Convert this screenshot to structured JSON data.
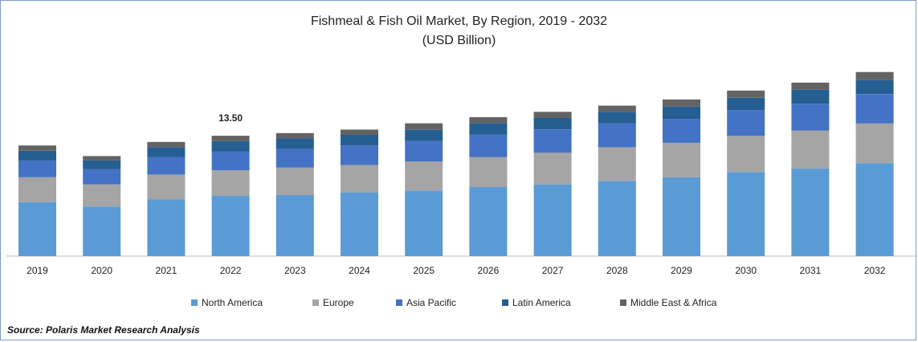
{
  "chart_data": {
    "type": "bar",
    "stacked": true,
    "title": "Fishmeal & Fish Oil Market, By Region, 2019 - 2032",
    "subtitle": "(USD Billion)",
    "categories": [
      "2019",
      "2020",
      "2021",
      "2022",
      "2023",
      "2024",
      "2025",
      "2026",
      "2027",
      "2028",
      "2029",
      "2030",
      "2031",
      "2032"
    ],
    "series": [
      {
        "name": "North America",
        "color": "#5b9bd5",
        "values": [
          6.1,
          5.6,
          6.4,
          6.8,
          6.9,
          7.2,
          7.4,
          7.8,
          8.1,
          8.5,
          8.9,
          9.5,
          9.9,
          10.5
        ]
      },
      {
        "name": "Europe",
        "color": "#a5a5a5",
        "values": [
          2.8,
          2.5,
          2.8,
          2.9,
          3.1,
          3.1,
          3.3,
          3.4,
          3.6,
          3.8,
          3.9,
          4.1,
          4.3,
          4.5
        ]
      },
      {
        "name": "Asia Pacific",
        "color": "#4472c4",
        "values": [
          1.9,
          1.7,
          2.0,
          2.1,
          2.1,
          2.2,
          2.3,
          2.5,
          2.6,
          2.7,
          2.7,
          2.9,
          3.0,
          3.3
        ]
      },
      {
        "name": "Latin America",
        "color": "#255e91",
        "values": [
          1.1,
          1.0,
          1.1,
          1.2,
          1.2,
          1.2,
          1.3,
          1.3,
          1.3,
          1.3,
          1.4,
          1.4,
          1.6,
          1.6
        ]
      },
      {
        "name": "Middle East & Africa",
        "color": "#636363",
        "values": [
          0.6,
          0.5,
          0.6,
          0.6,
          0.6,
          0.6,
          0.7,
          0.7,
          0.7,
          0.7,
          0.8,
          0.8,
          0.8,
          0.9
        ]
      }
    ],
    "annotations": [
      {
        "category": "2022",
        "text": "13.50"
      }
    ],
    "ylim": [
      0,
      20.5
    ],
    "legend": "bottom",
    "grid": false,
    "source": "Source: Polaris  Market Research Analysis"
  }
}
